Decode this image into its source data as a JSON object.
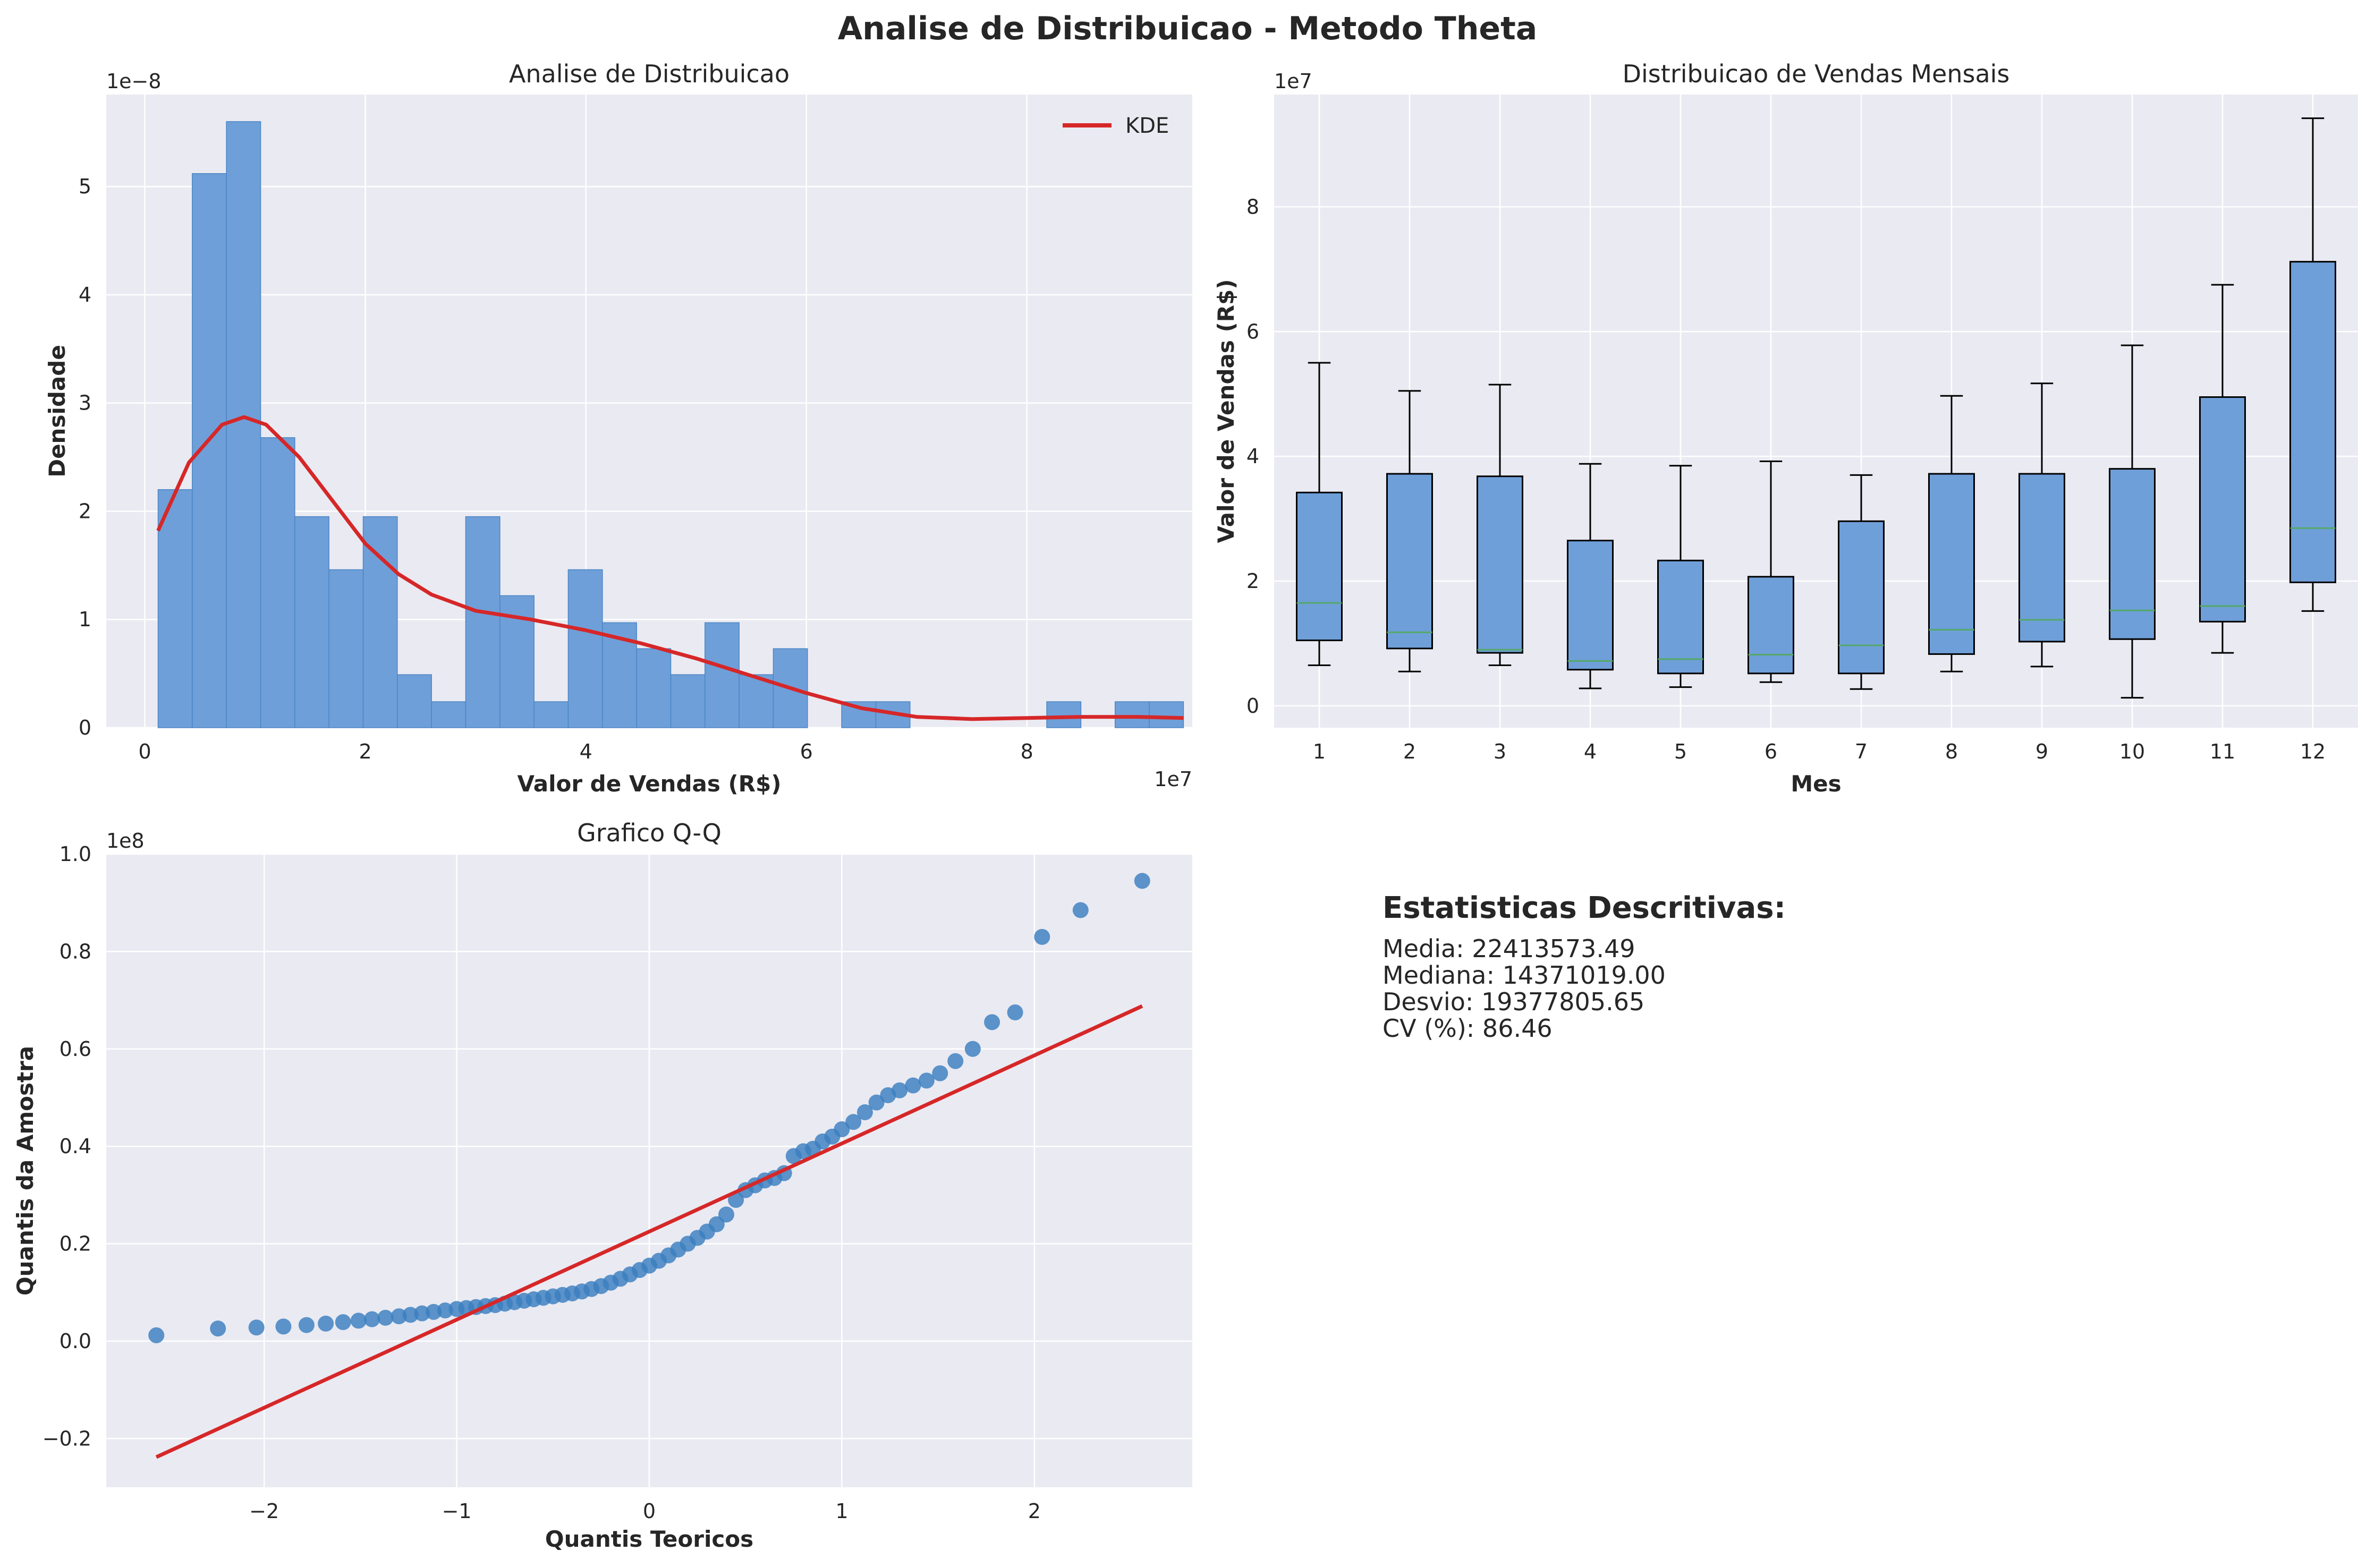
{
  "suptitle": "Analise de Distribuicao - Metodo Theta",
  "colors": {
    "axes_bg": "#eaeaf2",
    "grid": "#ffffff",
    "bar_fill": "#6f9fd8",
    "bar_edge": "#4a86c6",
    "kde_line": "#d62728",
    "box_fill": "#6f9fd8",
    "median": "#55a868",
    "qq_points": "#3b7fbf",
    "qq_line": "#d62728",
    "text": "#262626"
  },
  "chart_data": [
    {
      "type": "histogram",
      "title": "Analise de Distribuicao",
      "xlabel": "Valor de Vendas (R$)",
      "ylabel": "Densidade",
      "x_offset_label": "1e7",
      "y_offset_label": "1e−8",
      "xlim": [
        -0.35,
        9.5
      ],
      "ylim": [
        0,
        5.85
      ],
      "xticks": [
        0,
        2,
        4,
        6,
        8
      ],
      "yticks": [
        0,
        1,
        2,
        3,
        4,
        5
      ],
      "grid": true,
      "legend": {
        "position": "top-right",
        "entries": [
          "KDE"
        ]
      },
      "bins": [
        {
          "x0": 0.12,
          "x1": 0.43,
          "density": 2.2
        },
        {
          "x0": 0.43,
          "x1": 0.74,
          "density": 5.12
        },
        {
          "x0": 0.74,
          "x1": 1.05,
          "density": 5.6
        },
        {
          "x0": 1.05,
          "x1": 1.36,
          "density": 2.68
        },
        {
          "x0": 1.36,
          "x1": 1.67,
          "density": 1.95
        },
        {
          "x0": 1.67,
          "x1": 1.98,
          "density": 1.46
        },
        {
          "x0": 1.98,
          "x1": 2.29,
          "density": 1.95
        },
        {
          "x0": 2.29,
          "x1": 2.6,
          "density": 0.49
        },
        {
          "x0": 2.6,
          "x1": 2.91,
          "density": 0.24
        },
        {
          "x0": 2.91,
          "x1": 3.22,
          "density": 1.95
        },
        {
          "x0": 3.22,
          "x1": 3.53,
          "density": 1.22
        },
        {
          "x0": 3.53,
          "x1": 3.84,
          "density": 0.24
        },
        {
          "x0": 3.84,
          "x1": 4.15,
          "density": 1.46
        },
        {
          "x0": 4.15,
          "x1": 4.46,
          "density": 0.97
        },
        {
          "x0": 4.46,
          "x1": 4.77,
          "density": 0.73
        },
        {
          "x0": 4.77,
          "x1": 5.08,
          "density": 0.49
        },
        {
          "x0": 5.08,
          "x1": 5.39,
          "density": 0.97
        },
        {
          "x0": 5.39,
          "x1": 5.7,
          "density": 0.49
        },
        {
          "x0": 5.7,
          "x1": 6.01,
          "density": 0.73
        },
        {
          "x0": 6.32,
          "x1": 6.63,
          "density": 0.24
        },
        {
          "x0": 6.63,
          "x1": 6.94,
          "density": 0.24
        },
        {
          "x0": 8.18,
          "x1": 8.49,
          "density": 0.24
        },
        {
          "x0": 8.8,
          "x1": 9.11,
          "density": 0.24
        },
        {
          "x0": 9.11,
          "x1": 9.42,
          "density": 0.24
        }
      ],
      "kde": {
        "name": "KDE",
        "x": [
          0.12,
          0.4,
          0.7,
          0.9,
          1.1,
          1.4,
          1.7,
          2.0,
          2.3,
          2.6,
          3.0,
          3.5,
          4.0,
          4.5,
          5.0,
          5.5,
          6.0,
          6.5,
          7.0,
          7.5,
          8.0,
          8.5,
          9.0,
          9.42
        ],
        "y": [
          1.82,
          2.45,
          2.8,
          2.87,
          2.8,
          2.5,
          2.1,
          1.7,
          1.42,
          1.23,
          1.08,
          1.0,
          0.9,
          0.78,
          0.64,
          0.48,
          0.32,
          0.18,
          0.1,
          0.08,
          0.09,
          0.1,
          0.1,
          0.09
        ]
      }
    },
    {
      "type": "box",
      "title": "Distribuicao de Vendas Mensais",
      "xlabel": "Mes",
      "ylabel": "Valor de Vendas (R$)",
      "y_offset_label": "1e7",
      "ylim": [
        -0.35,
        9.8
      ],
      "yticks": [
        0,
        2,
        4,
        6,
        8
      ],
      "grid": true,
      "categories": [
        "1",
        "2",
        "3",
        "4",
        "5",
        "6",
        "7",
        "8",
        "9",
        "10",
        "11",
        "12"
      ],
      "boxes": [
        {
          "min": 0.65,
          "q1": 1.05,
          "median": 1.65,
          "q3": 3.42,
          "max": 5.5
        },
        {
          "min": 0.55,
          "q1": 0.92,
          "median": 1.18,
          "q3": 3.72,
          "max": 5.05
        },
        {
          "min": 0.65,
          "q1": 0.85,
          "median": 0.9,
          "q3": 3.68,
          "max": 5.15
        },
        {
          "min": 0.28,
          "q1": 0.58,
          "median": 0.72,
          "q3": 2.65,
          "max": 3.88
        },
        {
          "min": 0.3,
          "q1": 0.52,
          "median": 0.75,
          "q3": 2.33,
          "max": 3.85
        },
        {
          "min": 0.38,
          "q1": 0.52,
          "median": 0.82,
          "q3": 2.07,
          "max": 3.92
        },
        {
          "min": 0.27,
          "q1": 0.52,
          "median": 0.97,
          "q3": 2.96,
          "max": 3.7
        },
        {
          "min": 0.55,
          "q1": 0.83,
          "median": 1.22,
          "q3": 3.72,
          "max": 4.97
        },
        {
          "min": 0.63,
          "q1": 1.03,
          "median": 1.38,
          "q3": 3.72,
          "max": 5.17
        },
        {
          "min": 0.13,
          "q1": 1.07,
          "median": 1.53,
          "q3": 3.8,
          "max": 5.78
        },
        {
          "min": 0.85,
          "q1": 1.35,
          "median": 1.6,
          "q3": 4.95,
          "max": 6.75
        },
        {
          "min": 1.52,
          "q1": 1.98,
          "median": 2.85,
          "q3": 7.12,
          "max": 9.42
        }
      ]
    },
    {
      "type": "scatter",
      "title": "Grafico Q-Q",
      "xlabel": "Quantis Teoricos",
      "ylabel": "Quantis da Amostra",
      "y_offset_label": "1e8",
      "xlim": [
        -2.82,
        2.82
      ],
      "ylim": [
        -0.3,
        1.0
      ],
      "xticks": [
        -2,
        -1,
        0,
        1,
        2
      ],
      "yticks": [
        -0.2,
        0.0,
        0.2,
        0.4,
        0.6,
        0.8,
        1.0
      ],
      "grid": true,
      "points": {
        "x": [
          -2.56,
          -2.24,
          -2.04,
          -1.9,
          -1.78,
          -1.68,
          -1.59,
          -1.51,
          -1.44,
          -1.37,
          -1.3,
          -1.24,
          -1.18,
          -1.12,
          -1.06,
          -1.0,
          -0.95,
          -0.9,
          -0.85,
          -0.8,
          -0.75,
          -0.7,
          -0.65,
          -0.6,
          -0.55,
          -0.5,
          -0.45,
          -0.4,
          -0.35,
          -0.3,
          -0.25,
          -0.2,
          -0.15,
          -0.1,
          -0.05,
          0.0,
          0.05,
          0.1,
          0.15,
          0.2,
          0.25,
          0.3,
          0.35,
          0.4,
          0.45,
          0.5,
          0.55,
          0.6,
          0.65,
          0.7,
          0.75,
          0.8,
          0.85,
          0.9,
          0.95,
          1.0,
          1.06,
          1.12,
          1.18,
          1.24,
          1.3,
          1.37,
          1.44,
          1.51,
          1.59,
          1.68,
          1.78,
          1.9,
          2.04,
          2.24,
          2.56
        ],
        "y": [
          0.012,
          0.026,
          0.028,
          0.03,
          0.033,
          0.036,
          0.039,
          0.042,
          0.045,
          0.048,
          0.051,
          0.054,
          0.057,
          0.06,
          0.063,
          0.066,
          0.068,
          0.07,
          0.072,
          0.074,
          0.077,
          0.08,
          0.083,
          0.086,
          0.089,
          0.092,
          0.095,
          0.098,
          0.102,
          0.107,
          0.113,
          0.12,
          0.128,
          0.137,
          0.146,
          0.155,
          0.165,
          0.176,
          0.188,
          0.2,
          0.212,
          0.225,
          0.24,
          0.26,
          0.29,
          0.31,
          0.32,
          0.33,
          0.335,
          0.345,
          0.38,
          0.39,
          0.395,
          0.41,
          0.42,
          0.435,
          0.45,
          0.47,
          0.49,
          0.505,
          0.515,
          0.525,
          0.535,
          0.55,
          0.575,
          0.6,
          0.655,
          0.675,
          0.83,
          0.885,
          0.945
        ]
      },
      "reference_line": {
        "x": [
          -2.56,
          2.56
        ],
        "y": [
          -0.238,
          0.688
        ]
      }
    }
  ],
  "stats": {
    "title": "Estatisticas Descritivas:",
    "lines": [
      "Media: 22413573.49",
      "Mediana: 14371019.00",
      "Desvio: 19377805.65",
      "CV (%): 86.46"
    ]
  }
}
